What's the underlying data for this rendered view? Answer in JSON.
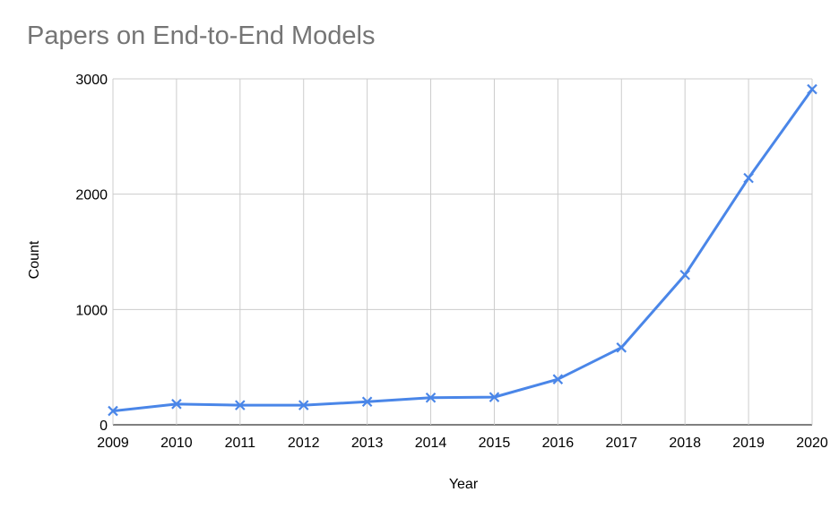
{
  "chart_data": {
    "type": "line",
    "title": "Papers on End-to-End Models",
    "xlabel": "Year",
    "ylabel": "Count",
    "categories": [
      "2009",
      "2010",
      "2011",
      "2012",
      "2013",
      "2014",
      "2015",
      "2016",
      "2017",
      "2018",
      "2019",
      "2020"
    ],
    "series": [
      {
        "values": [
          120,
          180,
          170,
          170,
          200,
          235,
          240,
          395,
          670,
          1300,
          2140,
          2910
        ],
        "color": "#4a86e8",
        "marker": "x"
      }
    ],
    "ylim": [
      0,
      3000
    ],
    "yticks": [
      0,
      1000,
      2000,
      3000
    ],
    "grid": true,
    "legend": "none"
  }
}
